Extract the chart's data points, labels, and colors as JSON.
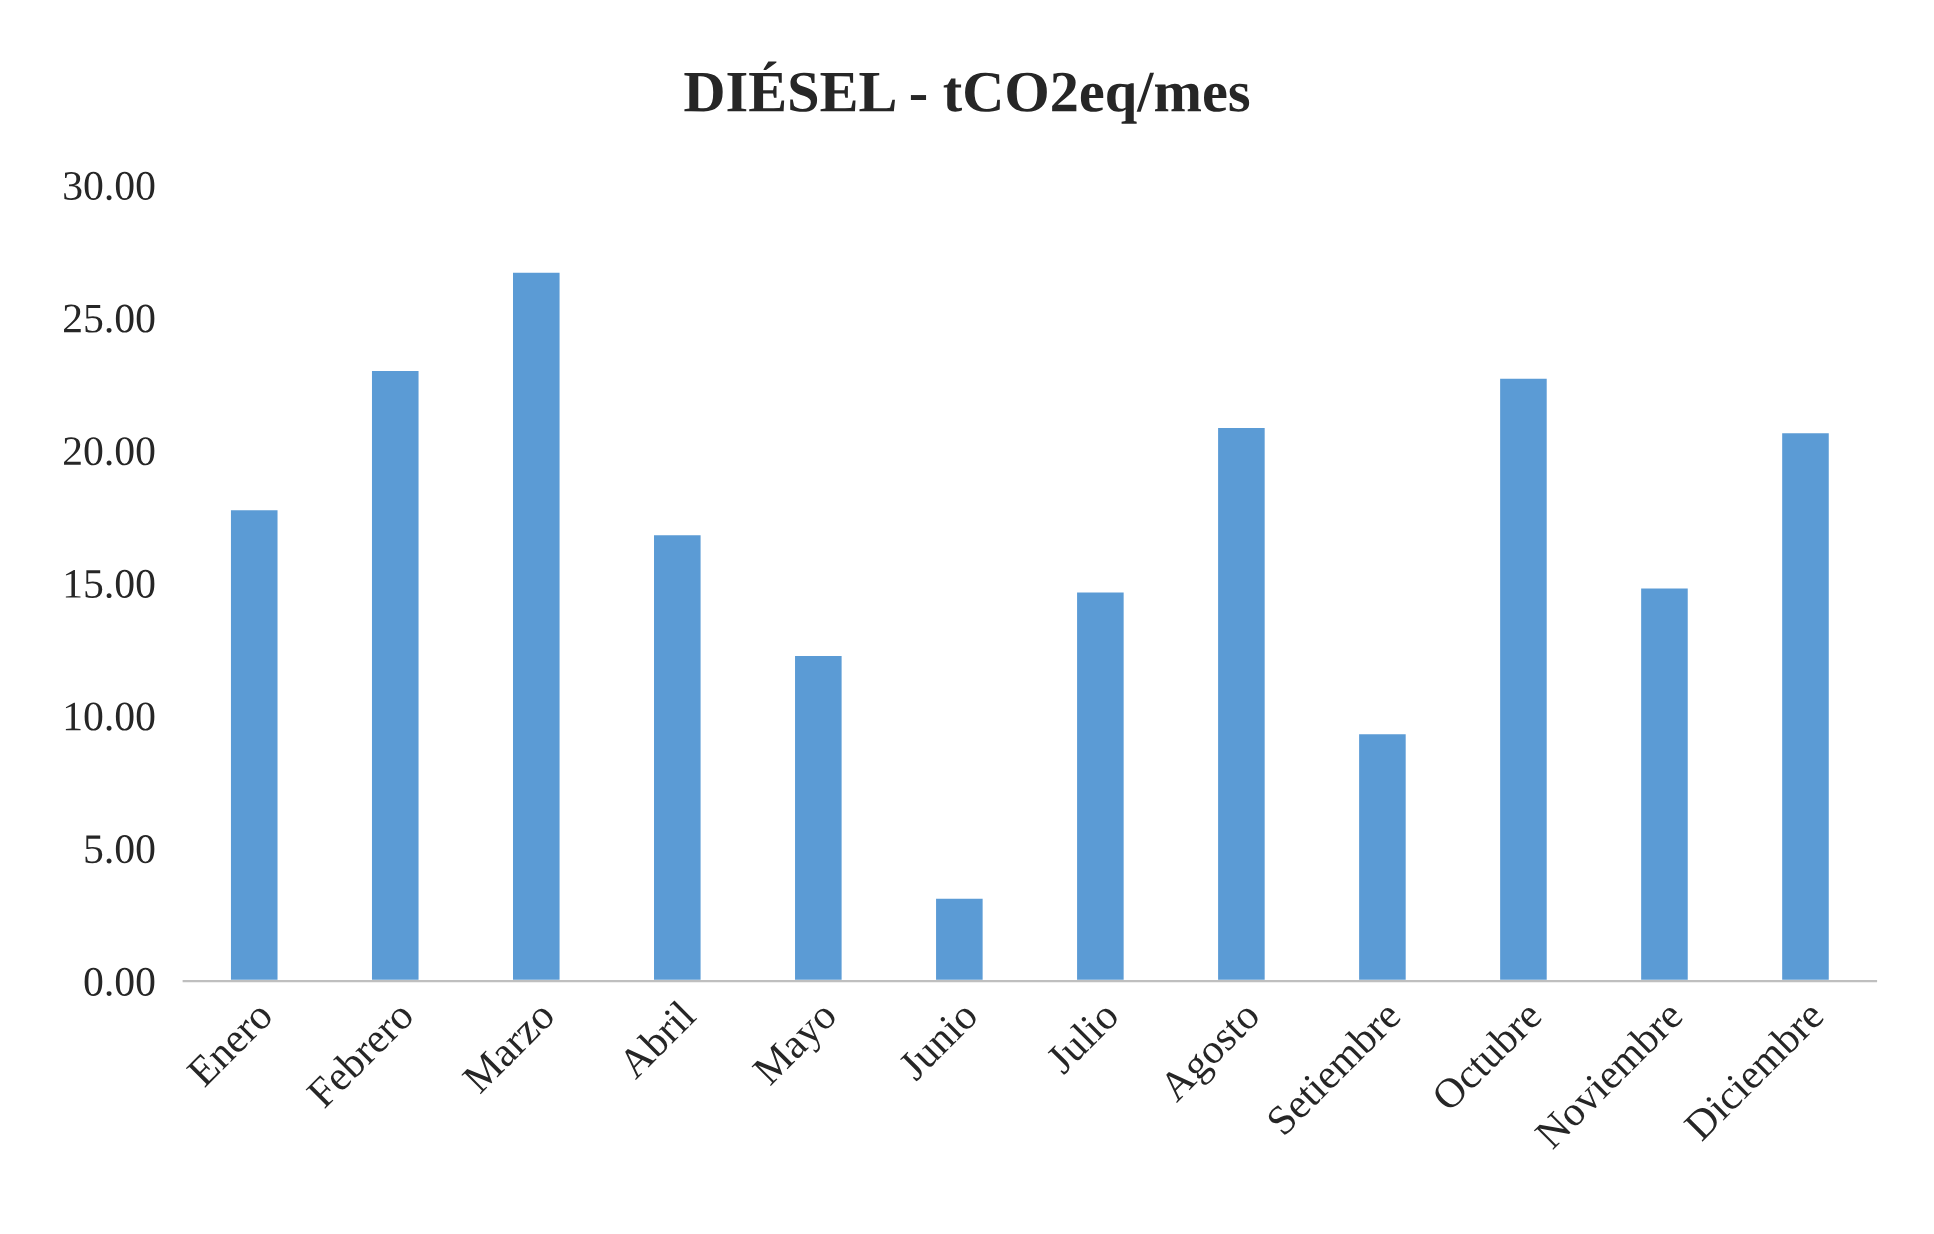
{
  "chart_data": {
    "type": "bar",
    "title": "DIÉSEL - tCO2eq/mes",
    "categories": [
      "Enero",
      "Febrero",
      "Marzo",
      "Abril",
      "Mayo",
      "Junio",
      "Julio",
      "Agosto",
      "Setiembre",
      "Octubre",
      "Noviembre",
      "Diciembre"
    ],
    "values": [
      17.8,
      23.05,
      26.75,
      16.85,
      12.3,
      3.15,
      14.7,
      20.9,
      9.35,
      22.75,
      14.85,
      20.7
    ],
    "color": "#5b9bd5",
    "ylim": [
      0,
      30
    ],
    "yticks": [
      {
        "value": 0,
        "label": "0.00"
      },
      {
        "value": 5,
        "label": "5.00"
      },
      {
        "value": 10,
        "label": "10.00"
      },
      {
        "value": 15,
        "label": "15.00"
      },
      {
        "value": 20,
        "label": "20.00"
      },
      {
        "value": 25,
        "label": "25.00"
      },
      {
        "value": 30,
        "label": "30.00"
      }
    ],
    "grid": false,
    "legend": false
  }
}
